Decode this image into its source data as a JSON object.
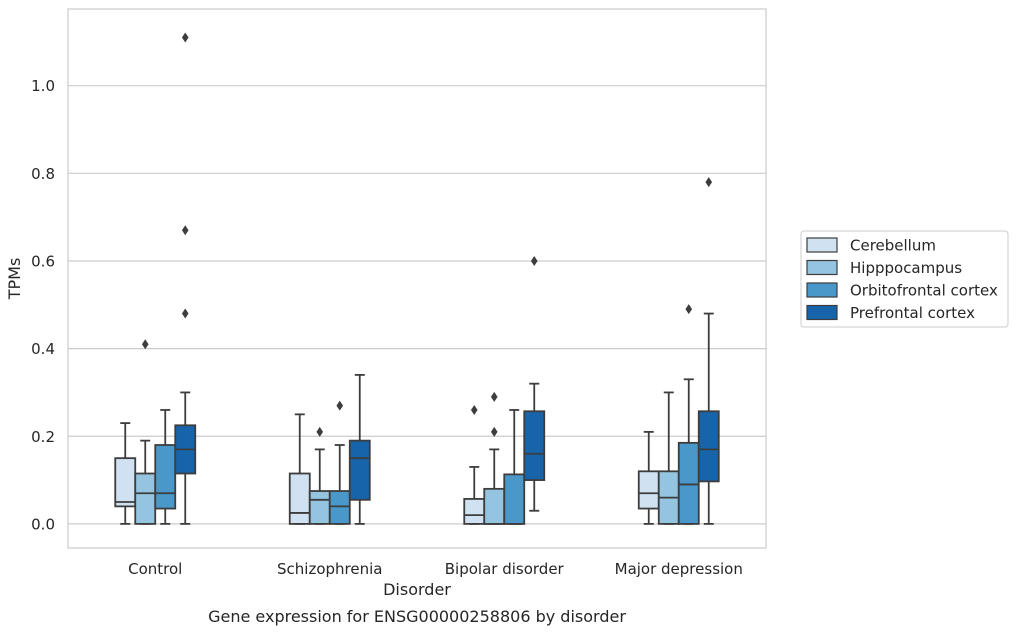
{
  "chart_data": {
    "type": "box",
    "title": "Gene expression for ENSG00000258806 by disorder",
    "xlabel": "Disorder",
    "ylabel": "TPMs",
    "ylim": [
      -0.055,
      1.175
    ],
    "yticks": [
      0.0,
      0.2,
      0.4,
      0.6,
      0.8,
      1.0
    ],
    "ytick_labels": [
      "0.0",
      "0.2",
      "0.4",
      "0.6",
      "0.8",
      "1.0"
    ],
    "grid": "horizontal",
    "legend_position": "right",
    "categories": [
      "Control",
      "Schizophrenia",
      "Bipolar disorder",
      "Major depression"
    ],
    "series": [
      {
        "name": "Cerebellum",
        "color": "#d0e1f2",
        "boxes": [
          {
            "whisker_low": 0.0,
            "q1": 0.04,
            "median": 0.05,
            "q3": 0.15,
            "whisker_high": 0.23,
            "outliers": []
          },
          {
            "whisker_low": 0.0,
            "q1": 0.0,
            "median": 0.025,
            "q3": 0.115,
            "whisker_high": 0.25,
            "outliers": []
          },
          {
            "whisker_low": 0.0,
            "q1": 0.0,
            "median": 0.02,
            "q3": 0.057,
            "whisker_high": 0.13,
            "outliers": [
              0.26
            ]
          },
          {
            "whisker_low": 0.0,
            "q1": 0.035,
            "median": 0.07,
            "q3": 0.12,
            "whisker_high": 0.21,
            "outliers": []
          }
        ]
      },
      {
        "name": "Hipppocampus",
        "color": "#94c4df",
        "boxes": [
          {
            "whisker_low": 0.0,
            "q1": 0.0,
            "median": 0.07,
            "q3": 0.115,
            "whisker_high": 0.19,
            "outliers": [
              0.41
            ]
          },
          {
            "whisker_low": 0.0,
            "q1": 0.0,
            "median": 0.055,
            "q3": 0.075,
            "whisker_high": 0.17,
            "outliers": [
              0.21
            ]
          },
          {
            "whisker_low": 0.0,
            "q1": 0.0,
            "median": 0.0,
            "q3": 0.08,
            "whisker_high": 0.17,
            "outliers": [
              0.21,
              0.29
            ]
          },
          {
            "whisker_low": 0.0,
            "q1": 0.0,
            "median": 0.06,
            "q3": 0.12,
            "whisker_high": 0.3,
            "outliers": []
          }
        ]
      },
      {
        "name": "Orbitofrontal cortex",
        "color": "#4a98c9",
        "boxes": [
          {
            "whisker_low": 0.0,
            "q1": 0.035,
            "median": 0.07,
            "q3": 0.18,
            "whisker_high": 0.26,
            "outliers": []
          },
          {
            "whisker_low": 0.0,
            "q1": 0.0,
            "median": 0.04,
            "q3": 0.075,
            "whisker_high": 0.18,
            "outliers": [
              0.27
            ]
          },
          {
            "whisker_low": 0.0,
            "q1": 0.0,
            "median": 0.0,
            "q3": 0.113,
            "whisker_high": 0.26,
            "outliers": []
          },
          {
            "whisker_low": 0.0,
            "q1": 0.0,
            "median": 0.09,
            "q3": 0.185,
            "whisker_high": 0.33,
            "outliers": [
              0.49
            ]
          }
        ]
      },
      {
        "name": "Prefrontal cortex",
        "color": "#1764ab",
        "boxes": [
          {
            "whisker_low": 0.0,
            "q1": 0.115,
            "median": 0.17,
            "q3": 0.225,
            "whisker_high": 0.3,
            "outliers": [
              0.48,
              0.67,
              1.11
            ]
          },
          {
            "whisker_low": 0.0,
            "q1": 0.055,
            "median": 0.15,
            "q3": 0.19,
            "whisker_high": 0.34,
            "outliers": []
          },
          {
            "whisker_low": 0.03,
            "q1": 0.1,
            "median": 0.16,
            "q3": 0.257,
            "whisker_high": 0.32,
            "outliers": [
              0.6
            ]
          },
          {
            "whisker_low": 0.0,
            "q1": 0.097,
            "median": 0.17,
            "q3": 0.257,
            "whisker_high": 0.48,
            "outliers": [
              0.78
            ]
          }
        ]
      }
    ]
  }
}
